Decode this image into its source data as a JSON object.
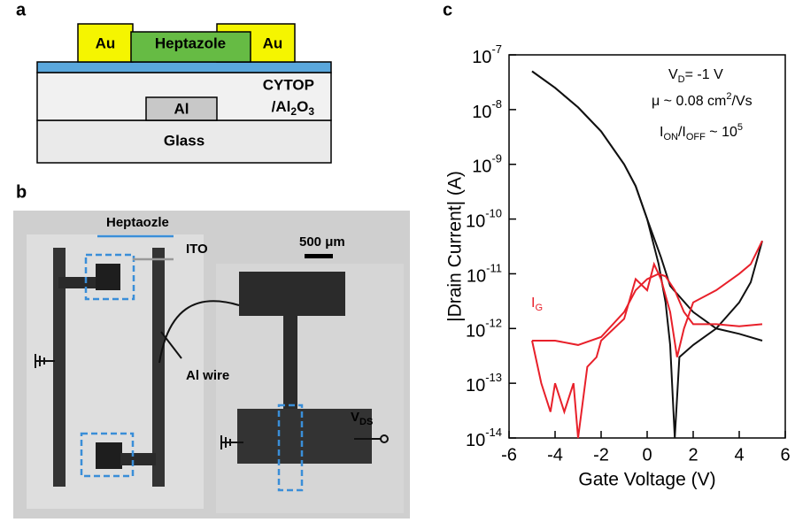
{
  "panels": {
    "a": "a",
    "b": "b",
    "c": "c"
  },
  "schematic": {
    "au_left": "Au",
    "heptazole": "Heptazole",
    "au_right": "Au",
    "cytop": "CYTOP",
    "dielectric": [
      "/Al",
      "2",
      "O",
      "3"
    ],
    "al": "Al",
    "glass": "Glass"
  },
  "photo": {
    "heptazole": "Heptaozle",
    "ito": "ITO",
    "scale": "500 μm",
    "al_wire": "Al wire",
    "vds": [
      "V",
      "DS"
    ]
  },
  "chart_data": {
    "type": "line",
    "log_y": true,
    "xlabel": "Gate Voltage (V)",
    "ylabel": "|Drain Current| (A)",
    "annotations": {
      "vd": [
        "V",
        "D",
        "= -1 V"
      ],
      "mobility": [
        "μ ~ 0.08 cm",
        "2",
        "/Vs"
      ],
      "onoff": [
        "I",
        "ON",
        "/I",
        "OFF",
        " ~ 10",
        "5"
      ],
      "ig": [
        "I",
        "G"
      ]
    },
    "xlim": [
      -6,
      6
    ],
    "xticks": [
      -6,
      -4,
      -2,
      0,
      2,
      4,
      6
    ],
    "ylim": [
      1e-14,
      1e-07
    ],
    "yticks": [
      {
        "value": 1e-14,
        "label": "10",
        "exponent": "-14"
      },
      {
        "value": 1e-13,
        "label": "10",
        "exponent": "-13"
      },
      {
        "value": 1e-12,
        "label": "10",
        "exponent": "-12"
      },
      {
        "value": 1e-11,
        "label": "10",
        "exponent": "-11"
      },
      {
        "value": 1e-10,
        "label": "10",
        "exponent": "-10"
      },
      {
        "value": 1e-09,
        "label": "10",
        "exponent": "-9"
      },
      {
        "value": 1e-08,
        "label": "10",
        "exponent": "-8"
      },
      {
        "value": 1e-07,
        "label": "10",
        "exponent": "-7"
      }
    ],
    "series": [
      {
        "color": "#111111",
        "x": [
          -5,
          -4,
          -3,
          -2,
          -1,
          -0.5,
          0,
          0.5,
          0.8,
          1.0,
          1.2,
          1.4,
          2,
          3,
          4,
          4.5,
          5
        ],
        "values": [
          5e-08,
          2.5e-08,
          1.1e-08,
          4e-09,
          1e-09,
          4e-10,
          1e-10,
          1.5e-11,
          3e-12,
          5e-13,
          1e-14,
          3e-13,
          5e-13,
          1e-12,
          3e-12,
          7e-12,
          4e-11
        ]
      },
      {
        "color": "#111111",
        "x": [
          -5,
          -4,
          -3,
          -2,
          -1,
          -0.5,
          0,
          0.6,
          1,
          2,
          3,
          4,
          5
        ],
        "values": [
          5e-08,
          2.5e-08,
          1.1e-08,
          4e-09,
          1e-09,
          4e-10,
          1e-10,
          2e-11,
          6e-12,
          2e-12,
          1e-12,
          8e-13,
          6e-13
        ]
      },
      {
        "color": "#e8202a",
        "x": [
          -5,
          -4.6,
          -4.2,
          -4,
          -3.6,
          -3.2,
          -3,
          -2.6,
          -2.2,
          -2,
          -1,
          -0.5,
          0,
          0.3,
          0.6,
          1,
          1.3,
          1.6,
          2,
          3,
          4,
          4.5,
          5
        ],
        "values": [
          6e-13,
          1e-13,
          3e-14,
          1e-13,
          3e-14,
          1e-13,
          1e-14,
          2e-13,
          3e-13,
          6e-13,
          1.5e-12,
          8e-12,
          5e-12,
          1.5e-11,
          8e-12,
          2e-12,
          3e-13,
          1e-12,
          3e-12,
          5e-12,
          1e-11,
          1.5e-11,
          4e-11
        ]
      },
      {
        "color": "#e8202a",
        "x": [
          -5,
          -4,
          -3,
          -2,
          -1,
          -0.5,
          0,
          0.5,
          0.8,
          1.2,
          1.6,
          2,
          3,
          4,
          5
        ],
        "values": [
          6e-13,
          6e-13,
          5e-13,
          7e-13,
          2e-12,
          5e-12,
          8e-12,
          1e-11,
          9e-12,
          5e-12,
          2e-12,
          1.2e-12,
          1.2e-12,
          1.1e-12,
          1.2e-12
        ]
      }
    ]
  }
}
